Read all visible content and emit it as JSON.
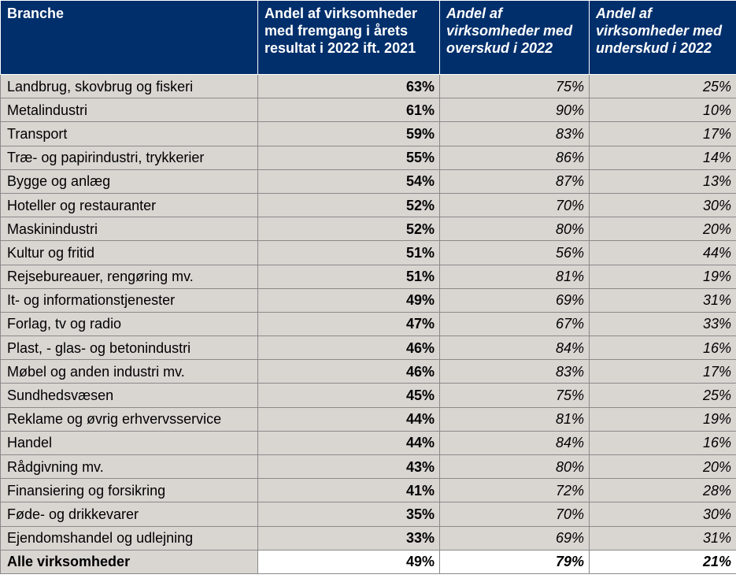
{
  "table": {
    "headers": [
      "Branche",
      "Andel af virksomheder med fremgang i årets resultat i 2022 ift. 2021",
      "Andel af virksomheder med overskud i 2022",
      "Andel af virksomheder med underskud i 2022"
    ],
    "rows": [
      [
        "Landbrug, skovbrug og fiskeri",
        "63%",
        "75%",
        "25%"
      ],
      [
        "Metalindustri",
        "61%",
        "90%",
        "10%"
      ],
      [
        "Transport",
        "59%",
        "83%",
        "17%"
      ],
      [
        "Træ- og papirindustri, trykkerier",
        "55%",
        "86%",
        "14%"
      ],
      [
        "Bygge og anlæg",
        "54%",
        "87%",
        "13%"
      ],
      [
        "Hoteller og restauranter",
        "52%",
        "70%",
        "30%"
      ],
      [
        "Maskinindustri",
        "52%",
        "80%",
        "20%"
      ],
      [
        "Kultur og fritid",
        "51%",
        "56%",
        "44%"
      ],
      [
        "Rejsebureauer, rengøring mv.",
        "51%",
        "81%",
        "19%"
      ],
      [
        "It- og informationstjenester",
        "49%",
        "69%",
        "31%"
      ],
      [
        "Forlag, tv og radio",
        "47%",
        "67%",
        "33%"
      ],
      [
        "Plast, - glas- og betonindustri",
        "46%",
        "84%",
        "16%"
      ],
      [
        "Møbel og anden industri mv.",
        "46%",
        "83%",
        "17%"
      ],
      [
        "Sundhedsvæsen",
        "45%",
        "75%",
        "25%"
      ],
      [
        "Reklame og øvrig erhvervsservice",
        "44%",
        "81%",
        "19%"
      ],
      [
        "Handel",
        "44%",
        "84%",
        "16%"
      ],
      [
        "Rådgivning mv.",
        "43%",
        "80%",
        "20%"
      ],
      [
        "Finansiering og forsikring",
        "41%",
        "72%",
        "28%"
      ],
      [
        "Føde- og drikkevarer",
        "35%",
        "70%",
        "30%"
      ],
      [
        "Ejendomshandel og udlejning",
        "33%",
        "69%",
        "31%"
      ]
    ],
    "total": [
      "Alle virksomheder",
      "49%",
      "79%",
      "21%"
    ]
  },
  "colors": {
    "header_bg": "#002f6c",
    "header_text": "#ffffff",
    "cell_bg": "#d9d6d2"
  }
}
